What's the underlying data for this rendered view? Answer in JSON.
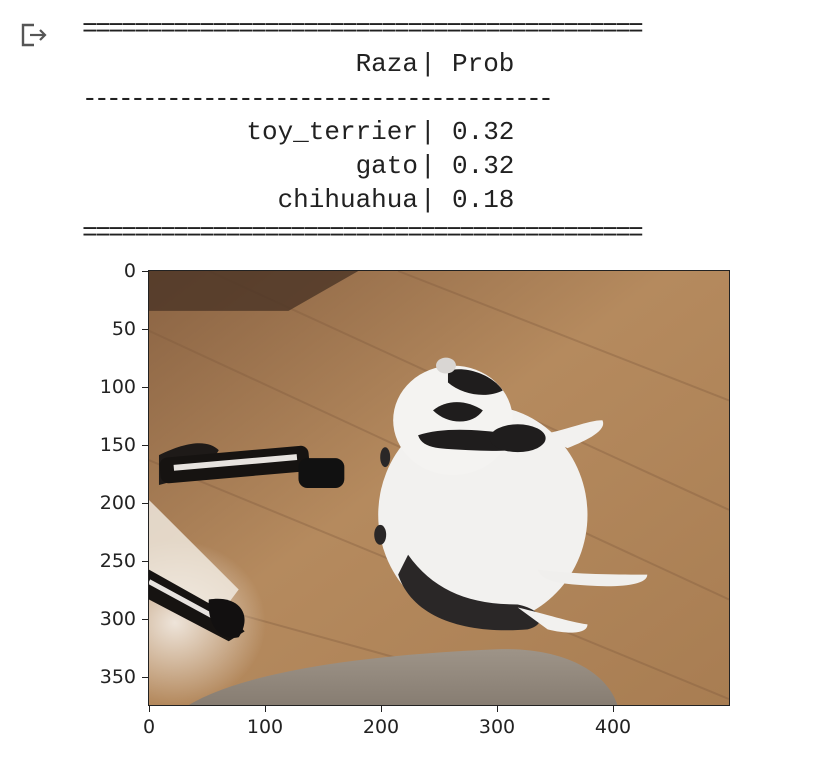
{
  "output_icon": "output-arrow-icon",
  "table": {
    "rule_top": "===========================================",
    "header": {
      "breed": "Raza",
      "prob": "Prob"
    },
    "rule_mid": "---------------------------------------",
    "rows": [
      {
        "breed": "toy_terrier",
        "prob": "0.32"
      },
      {
        "breed": "gato",
        "prob": "0.32"
      },
      {
        "breed": "chihuahua",
        "prob": "0.18"
      }
    ],
    "rule_bottom": "==========================================="
  },
  "plot": {
    "y_ticks": [
      "0",
      "50",
      "100",
      "150",
      "200",
      "250",
      "300",
      "350"
    ],
    "x_ticks": [
      "0",
      "100",
      "200",
      "300",
      "400"
    ]
  }
}
